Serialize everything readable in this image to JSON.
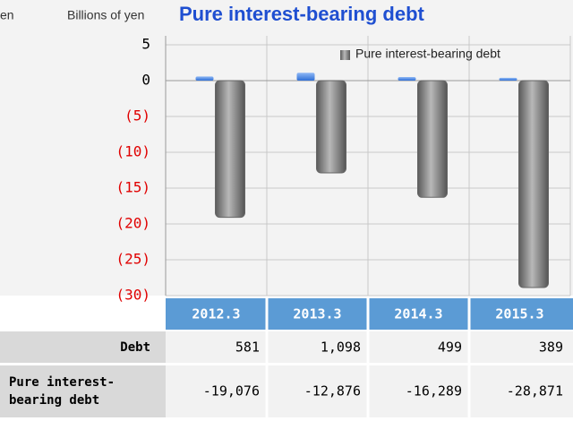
{
  "chart_data": {
    "type": "bar",
    "title": "Pure interest-bearing debt",
    "y_label": "Billions of yen",
    "clipped_text": "en",
    "categories": [
      "2012.3",
      "2013.3",
      "2014.3",
      "2015.3"
    ],
    "series": [
      {
        "name": "Debt",
        "color": "#4a86e8",
        "values": [
          0.581,
          1.098,
          0.499,
          0.389
        ],
        "value_labels": [
          "581",
          "1,098",
          "499",
          "389"
        ]
      },
      {
        "name": "Pure interest-bearing debt",
        "color": "#7a7a7a",
        "values": [
          -19.076,
          -12.876,
          -16.289,
          -28.871
        ],
        "value_labels": [
          "-19,076",
          "-12,876",
          "-16,289",
          "-28,871"
        ]
      }
    ],
    "ylim": [
      -30,
      5
    ],
    "yticks": [
      5,
      0,
      {
        "value": -5,
        "label": "(5)"
      },
      {
        "value": -10,
        "label": "(10)"
      },
      {
        "value": -15,
        "label": "(15)"
      },
      {
        "value": -20,
        "label": "(20)"
      },
      {
        "value": -25,
        "label": "(25)"
      },
      {
        "value": -30,
        "label": "(30)"
      }
    ],
    "negative_tick_color": "#e00000",
    "grid": true,
    "legend": "top-right"
  }
}
